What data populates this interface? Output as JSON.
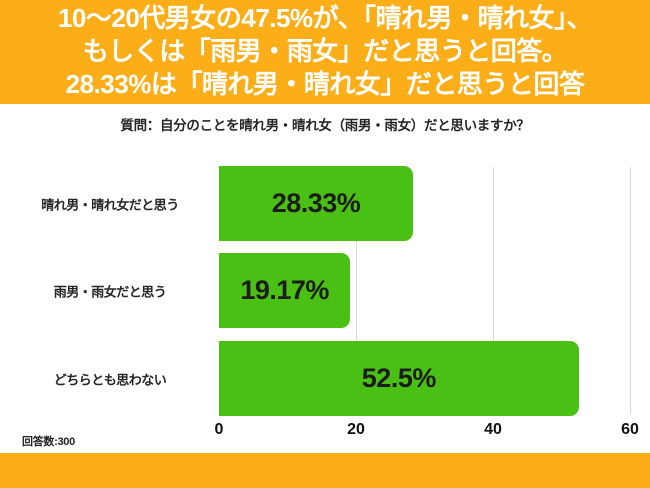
{
  "colors": {
    "orange": "#fbae17",
    "green": "#4abf14",
    "grid": "#d9d9d9",
    "text": "#1f1f1f"
  },
  "header": {
    "lines": [
      "10〜20代男女の47.5%が、「晴れ男・晴れ女」、",
      "もしくは「雨男・雨女」だと思うと回答。",
      "28.33%は「晴れ男・晴れ女」だと思うと回答"
    ]
  },
  "question": "質問：自分のことを晴れ男・晴れ女（雨男・雨女）だと思いますか？",
  "note": "回答数:300",
  "chart_data": {
    "type": "bar",
    "orientation": "horizontal",
    "title": "質問：自分のことを晴れ男・晴れ女（雨男・雨女）だと思いますか？",
    "categories": [
      "晴れ男・晴れ女だと思う",
      "雨男・雨女だと思う",
      "どちらとも思わない"
    ],
    "values": [
      28.33,
      19.17,
      52.5
    ],
    "value_labels": [
      "28.33%",
      "19.17%",
      "52.5%"
    ],
    "xlim": [
      0,
      60
    ],
    "xticks": [
      0,
      20,
      40,
      60
    ],
    "grid": true,
    "legend": false,
    "bar_color": "#4abf14",
    "sample_size_note": "回答数:300"
  }
}
